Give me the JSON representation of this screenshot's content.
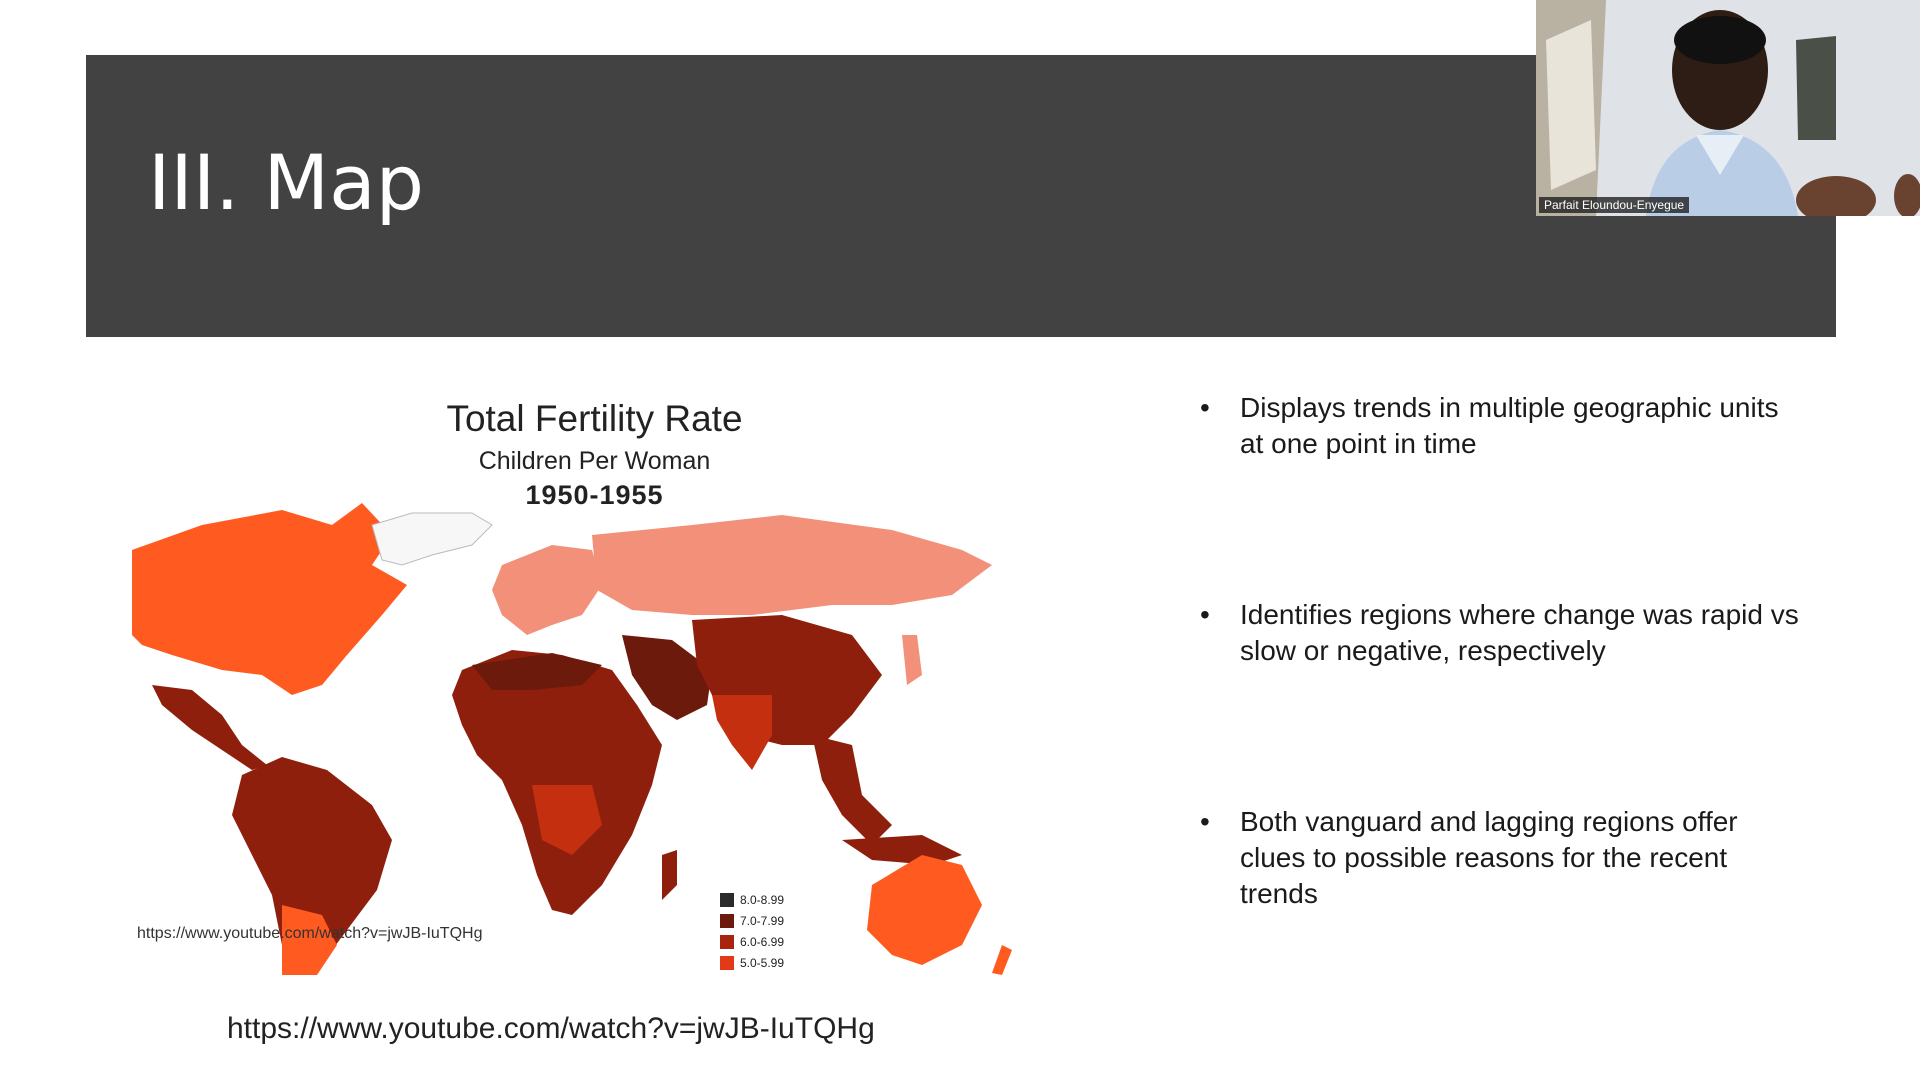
{
  "slide": {
    "title": "III. Map"
  },
  "webcam": {
    "participant_name": "Parfait Eloundou-Enyegue"
  },
  "map": {
    "title": "Total Fertility Rate",
    "subtitle": "Children Per Woman",
    "period": "1950-1955",
    "embedded_url": "https://www.youtube.com/watch?v=jwJB-IuTQHg",
    "legend": [
      {
        "label": "8.0-8.99",
        "color": "#2b2b2b"
      },
      {
        "label": "7.0-7.99",
        "color": "#6b1a0c"
      },
      {
        "label": "6.0-6.99",
        "color": "#a8240e"
      },
      {
        "label": "5.0-5.99",
        "color": "#e23a17"
      }
    ]
  },
  "source_url": "https://www.youtube.com/watch?v=jwJB-IuTQHg",
  "bullets": [
    {
      "marker": "•",
      "text": "Displays trends in multiple geographic units at one point in time"
    },
    {
      "marker": "•",
      "text": "Identifies regions where change was rapid vs slow or negative, respectively"
    },
    {
      "marker": "•",
      "text": "Both vanguard and lagging regions offer clues to possible reasons for the recent trends"
    }
  ],
  "colors": {
    "header_bg": "#424242",
    "tfr_low": "#f2907a",
    "tfr_mid": "#ff5a1f",
    "tfr_high": "#8e1f0d",
    "tfr_very_high": "#6b1a0c"
  }
}
